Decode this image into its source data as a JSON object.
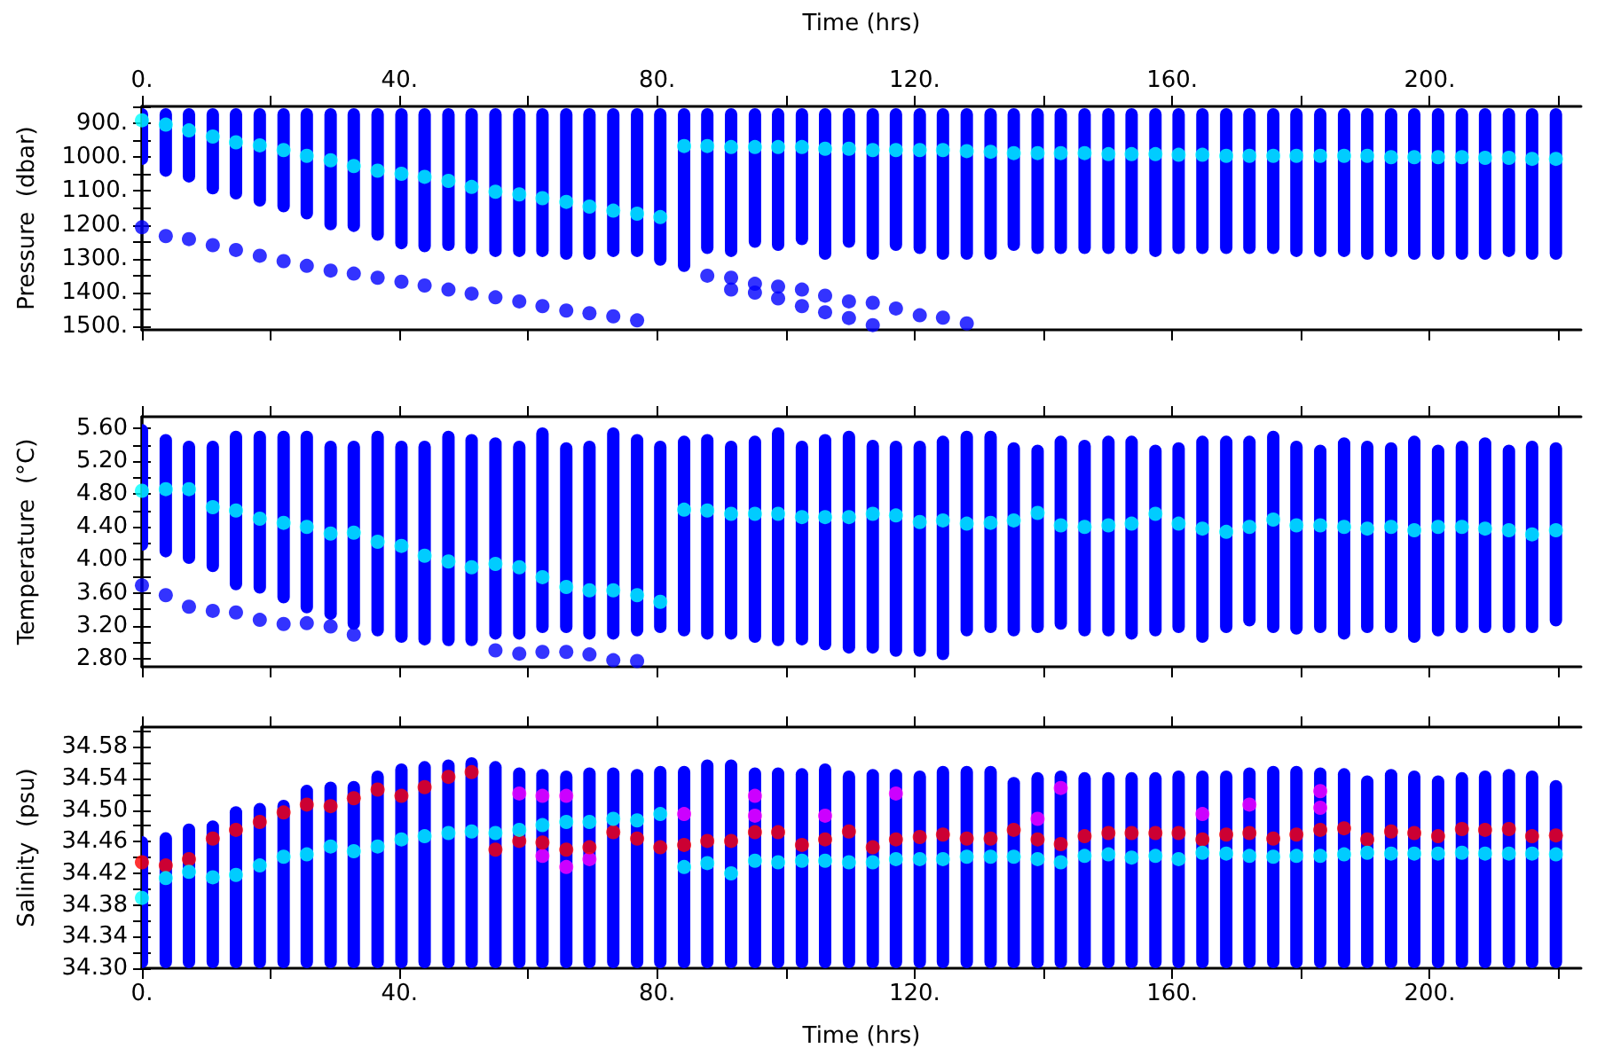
{
  "chart_data": [
    {
      "type": "bar",
      "ylabel": "Pressure  (dbar)",
      "xlabel": "Time (hrs)",
      "marker": "circle",
      "x": [
        0,
        3.7,
        7.3,
        11.0,
        14.6,
        18.3,
        22.0,
        25.6,
        29.3,
        32.9,
        36.6,
        40.3,
        43.9,
        47.6,
        51.2,
        54.9,
        58.6,
        62.2,
        65.9,
        69.5,
        73.2,
        76.9,
        80.5,
        84.2,
        87.8,
        91.5,
        95.2,
        98.8,
        102.5,
        106.1,
        109.8,
        113.5,
        117.1,
        120.8,
        124.4,
        128.1,
        131.8,
        135.4,
        139.1,
        142.7,
        146.4,
        150.1,
        153.7,
        157.4,
        161.0,
        164.7,
        168.4,
        172.0,
        175.7,
        179.3,
        183.0,
        186.7,
        190.3,
        194.0,
        197.6,
        201.3,
        205.0,
        208.6,
        212.3,
        215.9,
        219.6
      ],
      "xlim": [
        0,
        223.5
      ],
      "xticks": [
        {
          "value": 0,
          "label": "0."
        },
        {
          "value": 20,
          "label": null
        },
        {
          "value": 40,
          "label": "40."
        },
        {
          "value": 60,
          "label": null
        },
        {
          "value": 80,
          "label": "80."
        },
        {
          "value": 100,
          "label": null
        },
        {
          "value": 120,
          "label": "120."
        },
        {
          "value": 140,
          "label": null
        },
        {
          "value": 160,
          "label": "160."
        },
        {
          "value": 180,
          "label": null
        },
        {
          "value": 200,
          "label": "200."
        },
        {
          "value": 220,
          "label": null
        }
      ],
      "ylim": [
        1510,
        850
      ],
      "yticks": [
        {
          "value": 850,
          "label": null
        },
        {
          "value": 900,
          "label": "900."
        },
        {
          "value": 950,
          "label": null
        },
        {
          "value": 1000,
          "label": "1000."
        },
        {
          "value": 1050,
          "label": null
        },
        {
          "value": 1100,
          "label": "1100."
        },
        {
          "value": 1150,
          "label": null
        },
        {
          "value": 1200,
          "label": "1200."
        },
        {
          "value": 1250,
          "label": null
        },
        {
          "value": 1300,
          "label": "1300."
        },
        {
          "value": 1350,
          "label": null
        },
        {
          "value": 1400,
          "label": "1400."
        },
        {
          "value": 1450,
          "label": null
        },
        {
          "value": 1500,
          "label": "1500."
        }
      ],
      "series": [
        {
          "color": "#0000ff",
          "base": [
            855,
            855,
            855,
            855,
            855,
            855,
            855,
            855,
            855,
            855,
            855,
            855,
            855,
            855,
            855,
            855,
            855,
            855,
            855,
            855,
            855,
            855,
            855,
            855,
            855,
            855,
            855,
            855,
            855,
            855,
            855,
            855,
            855,
            855,
            855,
            855,
            855,
            855,
            855,
            855,
            855,
            855,
            855,
            855,
            855,
            855,
            855,
            855,
            855,
            855,
            855,
            855,
            855,
            855,
            855,
            855,
            855,
            855,
            855,
            855,
            855
          ],
          "values": [
            168,
            203,
            220,
            255,
            270,
            291,
            308,
            329,
            361,
            366,
            392,
            417,
            426,
            422,
            431,
            440,
            440,
            440,
            448,
            448,
            440,
            440,
            466,
            484,
            431,
            440,
            413,
            422,
            405,
            448,
            413,
            448,
            422,
            431,
            448,
            448,
            448,
            422,
            431,
            431,
            431,
            431,
            431,
            440,
            431,
            431,
            431,
            431,
            431,
            440,
            440,
            440,
            448,
            440,
            448,
            448,
            448,
            448,
            440,
            448,
            448
          ]
        },
        {
          "type": "scatter",
          "color": "#0000ff",
          "x": [
            0,
            3.7,
            7.3,
            11.0,
            14.6,
            18.3,
            22.0,
            25.6,
            29.3,
            32.9,
            36.6,
            40.3,
            43.9,
            47.6,
            51.2,
            54.9,
            58.6,
            62.2,
            65.9,
            69.5,
            73.2,
            76.9,
            87.8,
            91.5,
            91.5,
            95.2,
            95.2,
            98.8,
            98.8,
            102.5,
            102.5,
            106.1,
            106.1,
            109.8,
            109.8,
            113.5,
            113.5,
            117.1,
            120.8,
            124.4,
            128.1
          ],
          "values": [
            1207,
            1233,
            1242,
            1260,
            1274,
            1291,
            1307,
            1321,
            1335,
            1344,
            1356,
            1368,
            1379,
            1391,
            1403,
            1414,
            1426,
            1440,
            1453,
            1461,
            1470,
            1482,
            1350,
            1356,
            1391,
            1374,
            1400,
            1382,
            1417,
            1391,
            1440,
            1409,
            1458,
            1426,
            1475,
            1430,
            1496,
            1447,
            1467,
            1474,
            1491
          ]
        },
        {
          "type": "scatter",
          "color": "#00ffff",
          "values": [
            891,
            904,
            921,
            939,
            956,
            965,
            979,
            996,
            1009,
            1026,
            1040,
            1049,
            1058,
            1070,
            1088,
            1102,
            1110,
            1121,
            1132,
            1146,
            1158,
            1167,
            1177,
            967,
            967,
            970,
            970,
            970,
            970,
            975,
            975,
            979,
            979,
            979,
            979,
            982,
            984,
            988,
            988,
            988,
            988,
            991,
            991,
            991,
            993,
            993,
            996,
            996,
            996,
            996,
            996,
            996,
            996,
            1000,
            1000,
            1000,
            1000,
            1002,
            1002,
            1005,
            1005
          ]
        }
      ]
    },
    {
      "type": "bar",
      "ylabel": "Temperature  (°C)",
      "tick_labels": "y",
      "marker": "circle",
      "x": [
        0,
        3.7,
        7.3,
        11.0,
        14.6,
        18.3,
        22.0,
        25.6,
        29.3,
        32.9,
        36.6,
        40.3,
        43.9,
        47.6,
        51.2,
        54.9,
        58.6,
        62.2,
        65.9,
        69.5,
        73.2,
        76.9,
        80.5,
        84.2,
        87.8,
        91.5,
        95.2,
        98.8,
        102.5,
        106.1,
        109.8,
        113.5,
        117.1,
        120.8,
        124.4,
        128.1,
        131.8,
        135.4,
        139.1,
        142.7,
        146.4,
        150.1,
        153.7,
        157.4,
        161.0,
        164.7,
        168.4,
        172.0,
        175.7,
        179.3,
        183.0,
        186.7,
        190.3,
        194.0,
        197.6,
        201.3,
        205.0,
        208.6,
        212.3,
        215.9,
        219.6
      ],
      "xlim": [
        0,
        223.5
      ],
      "xticks": [
        {
          "value": 0,
          "label": null
        },
        {
          "value": 20,
          "label": null
        },
        {
          "value": 40,
          "label": null
        },
        {
          "value": 60,
          "label": null
        },
        {
          "value": 80,
          "label": null
        },
        {
          "value": 100,
          "label": null
        },
        {
          "value": 120,
          "label": null
        },
        {
          "value": 140,
          "label": null
        },
        {
          "value": 160,
          "label": null
        },
        {
          "value": 180,
          "label": null
        },
        {
          "value": 200,
          "label": null
        },
        {
          "value": 220,
          "label": null
        }
      ],
      "ylim": [
        2.7,
        5.74
      ],
      "yticks": [
        {
          "value": 2.8,
          "label": "2.80"
        },
        {
          "value": 3.0,
          "label": null
        },
        {
          "value": 3.2,
          "label": "3.20"
        },
        {
          "value": 3.4,
          "label": null
        },
        {
          "value": 3.6,
          "label": "3.60"
        },
        {
          "value": 3.8,
          "label": null
        },
        {
          "value": 4.0,
          "label": "4.00"
        },
        {
          "value": 4.2,
          "label": null
        },
        {
          "value": 4.4,
          "label": "4.40"
        },
        {
          "value": 4.6,
          "label": null
        },
        {
          "value": 4.8,
          "label": "4.80"
        },
        {
          "value": 5.0,
          "label": null
        },
        {
          "value": 5.2,
          "label": "5.20"
        },
        {
          "value": 5.4,
          "label": null
        },
        {
          "value": 5.6,
          "label": "5.60"
        }
      ],
      "series": [
        {
          "color": "#0000ff",
          "base": [
            4.11,
            4.03,
            3.95,
            3.85,
            3.63,
            3.59,
            3.47,
            3.35,
            3.27,
            3.15,
            3.07,
            2.99,
            2.96,
            2.95,
            2.95,
            3.03,
            3.03,
            3.11,
            3.11,
            3.03,
            3.03,
            3.07,
            3.11,
            3.07,
            3.03,
            3.03,
            2.99,
            2.95,
            2.96,
            2.9,
            2.86,
            2.86,
            2.82,
            2.82,
            2.78,
            3.07,
            3.11,
            3.07,
            3.11,
            3.15,
            3.07,
            3.07,
            3.03,
            3.07,
            3.11,
            2.99,
            3.11,
            3.19,
            3.11,
            3.09,
            3.11,
            3.03,
            3.11,
            3.11,
            2.99,
            3.07,
            3.11,
            3.11,
            3.11,
            3.11,
            3.19
          ],
          "values": [
            1.54,
            1.5,
            1.5,
            1.6,
            1.94,
            1.98,
            2.1,
            2.22,
            2.18,
            2.3,
            2.5,
            2.46,
            2.49,
            2.62,
            2.58,
            2.46,
            2.42,
            2.5,
            2.32,
            2.42,
            2.58,
            2.46,
            2.34,
            2.44,
            2.5,
            2.42,
            2.52,
            2.66,
            2.49,
            2.63,
            2.71,
            2.6,
            2.63,
            2.63,
            2.73,
            2.5,
            2.46,
            2.36,
            2.29,
            2.36,
            2.39,
            2.44,
            2.48,
            2.33,
            2.32,
            2.52,
            2.4,
            2.32,
            2.46,
            2.36,
            2.29,
            2.46,
            2.34,
            2.32,
            2.52,
            2.33,
            2.34,
            2.38,
            2.29,
            2.34,
            2.24
          ]
        },
        {
          "type": "scatter",
          "color": "#0000ff",
          "x": [
            0,
            3.7,
            7.3,
            11.0,
            14.6,
            18.3,
            22.0,
            25.6,
            29.3,
            32.9,
            54.9,
            58.6,
            62.2,
            65.9,
            69.5,
            73.2,
            76.9
          ],
          "values": [
            3.69,
            3.57,
            3.43,
            3.38,
            3.36,
            3.27,
            3.22,
            3.23,
            3.19,
            3.09,
            2.9,
            2.86,
            2.88,
            2.88,
            2.85,
            2.78,
            2.77
          ]
        },
        {
          "type": "scatter",
          "color": "#00ffff",
          "values": [
            4.84,
            4.86,
            4.86,
            4.64,
            4.6,
            4.5,
            4.45,
            4.4,
            4.32,
            4.33,
            4.22,
            4.17,
            4.05,
            3.98,
            3.91,
            3.95,
            3.91,
            3.79,
            3.67,
            3.63,
            3.63,
            3.57,
            3.49,
            4.61,
            4.6,
            4.56,
            4.56,
            4.56,
            4.52,
            4.52,
            4.52,
            4.56,
            4.54,
            4.46,
            4.48,
            4.44,
            4.45,
            4.48,
            4.57,
            4.42,
            4.4,
            4.42,
            4.44,
            4.56,
            4.44,
            4.38,
            4.34,
            4.4,
            4.49,
            4.42,
            4.42,
            4.4,
            4.38,
            4.4,
            4.36,
            4.4,
            4.4,
            4.38,
            4.36,
            4.31,
            4.36
          ]
        }
      ]
    },
    {
      "type": "bar",
      "ylabel": "Salinity  (psu)",
      "xlabel": "Time (hrs)",
      "marker": "circle",
      "x": [
        0,
        3.7,
        7.3,
        11.0,
        14.6,
        18.3,
        22.0,
        25.6,
        29.3,
        32.9,
        36.6,
        40.3,
        43.9,
        47.6,
        51.2,
        54.9,
        58.6,
        62.2,
        65.9,
        69.5,
        73.2,
        76.9,
        80.5,
        84.2,
        87.8,
        91.5,
        95.2,
        98.8,
        102.5,
        106.1,
        109.8,
        113.5,
        117.1,
        120.8,
        124.4,
        128.1,
        131.8,
        135.4,
        139.1,
        142.7,
        146.4,
        150.1,
        153.7,
        157.4,
        161.0,
        164.7,
        168.4,
        172.0,
        175.7,
        179.3,
        183.0,
        186.7,
        190.3,
        194.0,
        197.6,
        201.3,
        205.0,
        208.6,
        212.3,
        215.9,
        219.6
      ],
      "xlim": [
        0,
        223.5
      ],
      "xticks": [
        {
          "value": 0,
          "label": "0."
        },
        {
          "value": 20,
          "label": null
        },
        {
          "value": 40,
          "label": "40."
        },
        {
          "value": 60,
          "label": null
        },
        {
          "value": 80,
          "label": "80."
        },
        {
          "value": 100,
          "label": null
        },
        {
          "value": 120,
          "label": "120."
        },
        {
          "value": 140,
          "label": null
        },
        {
          "value": 160,
          "label": "160."
        },
        {
          "value": 180,
          "label": null
        },
        {
          "value": 200,
          "label": "200."
        },
        {
          "value": 220,
          "label": null
        }
      ],
      "ylim": [
        34.3,
        34.605
      ],
      "yticks": [
        {
          "value": 34.3,
          "label": "34.30"
        },
        {
          "value": 34.32,
          "label": null
        },
        {
          "value": 34.34,
          "label": "34.34"
        },
        {
          "value": 34.36,
          "label": null
        },
        {
          "value": 34.38,
          "label": "34.38"
        },
        {
          "value": 34.4,
          "label": null
        },
        {
          "value": 34.42,
          "label": "34.42"
        },
        {
          "value": 34.44,
          "label": null
        },
        {
          "value": 34.46,
          "label": "34.46"
        },
        {
          "value": 34.48,
          "label": null
        },
        {
          "value": 34.5,
          "label": "34.50"
        },
        {
          "value": 34.52,
          "label": null
        },
        {
          "value": 34.54,
          "label": "34.54"
        },
        {
          "value": 34.56,
          "label": null
        },
        {
          "value": 34.58,
          "label": "34.58"
        },
        {
          "value": 34.6,
          "label": null
        }
      ],
      "series": [
        {
          "color": "#0000ff",
          "base": [
            34.3,
            34.3,
            34.3,
            34.3,
            34.3,
            34.3,
            34.3,
            34.3,
            34.3,
            34.3,
            34.3,
            34.3,
            34.3,
            34.3,
            34.3,
            34.3,
            34.3,
            34.3,
            34.3,
            34.3,
            34.3,
            34.3,
            34.3,
            34.3,
            34.3,
            34.3,
            34.3,
            34.3,
            34.3,
            34.3,
            34.3,
            34.3,
            34.3,
            34.3,
            34.3,
            34.3,
            34.3,
            34.3,
            34.3,
            34.3,
            34.3,
            34.3,
            34.3,
            34.3,
            34.3,
            34.3,
            34.3,
            34.3,
            34.3,
            34.3,
            34.3,
            34.3,
            34.3,
            34.3,
            34.3,
            34.3,
            34.3,
            34.3,
            34.3,
            34.3,
            34.3
          ],
          "values": [
            0.167,
            0.172,
            0.183,
            0.187,
            0.205,
            0.209,
            0.213,
            0.232,
            0.236,
            0.237,
            0.25,
            0.259,
            0.262,
            0.264,
            0.267,
            0.262,
            0.254,
            0.252,
            0.25,
            0.254,
            0.254,
            0.252,
            0.256,
            0.256,
            0.264,
            0.264,
            0.254,
            0.254,
            0.253,
            0.259,
            0.25,
            0.252,
            0.252,
            0.25,
            0.256,
            0.256,
            0.256,
            0.242,
            0.248,
            0.25,
            0.248,
            0.248,
            0.248,
            0.248,
            0.25,
            0.25,
            0.25,
            0.254,
            0.256,
            0.256,
            0.254,
            0.253,
            0.244,
            0.252,
            0.25,
            0.244,
            0.248,
            0.25,
            0.252,
            0.25,
            0.238
          ]
        },
        {
          "type": "scatter",
          "color": "#ff00ff",
          "x": [
            58.6,
            62.2,
            62.2,
            65.9,
            65.9,
            69.5,
            84.2,
            95.2,
            95.2,
            106.1,
            117.1,
            139.1,
            142.7,
            164.7,
            172.0,
            183.0,
            183.0
          ],
          "values": [
            34.521,
            34.518,
            34.442,
            34.518,
            34.428,
            34.438,
            34.495,
            34.518,
            34.493,
            34.493,
            34.521,
            34.489,
            34.528,
            34.495,
            34.507,
            34.524,
            34.503
          ]
        },
        {
          "type": "scatter",
          "color": "#ff0000",
          "values": [
            34.434,
            34.43,
            34.438,
            34.464,
            34.475,
            34.485,
            34.497,
            34.507,
            34.505,
            34.515,
            34.526,
            34.518,
            34.529,
            34.542,
            34.548,
            34.45,
            34.461,
            34.459,
            34.45,
            34.453,
            34.472,
            34.464,
            34.453,
            34.456,
            34.461,
            34.461,
            34.472,
            34.472,
            34.456,
            34.463,
            34.473,
            34.453,
            34.463,
            34.466,
            34.469,
            34.464,
            34.464,
            34.475,
            34.463,
            34.457,
            34.467,
            34.471,
            34.471,
            34.471,
            34.471,
            34.463,
            34.469,
            34.471,
            34.464,
            34.469,
            34.475,
            34.477,
            34.463,
            34.473,
            34.471,
            34.467,
            34.476,
            34.475,
            34.476,
            34.467,
            34.468
          ]
        },
        {
          "type": "scatter",
          "color": "#00ffff",
          "values": [
            34.389,
            34.414,
            34.422,
            34.415,
            34.418,
            34.43,
            34.441,
            34.444,
            34.454,
            34.448,
            34.454,
            34.463,
            34.467,
            34.471,
            34.473,
            34.471,
            34.475,
            34.481,
            34.485,
            34.485,
            34.489,
            34.487,
            34.495,
            34.428,
            34.433,
            34.42,
            34.436,
            34.434,
            34.436,
            34.436,
            34.434,
            34.434,
            34.438,
            34.438,
            34.438,
            34.441,
            34.441,
            34.441,
            34.438,
            34.434,
            34.442,
            34.444,
            34.44,
            34.442,
            34.438,
            34.446,
            34.445,
            34.442,
            34.441,
            34.442,
            34.442,
            34.444,
            34.446,
            34.445,
            34.445,
            34.445,
            34.446,
            34.445,
            34.445,
            34.445,
            34.444
          ]
        }
      ]
    }
  ]
}
